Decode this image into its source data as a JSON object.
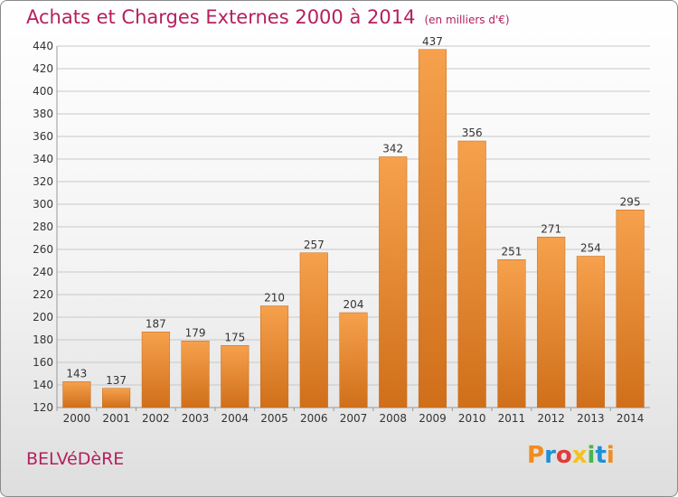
{
  "header": {
    "title": "Achats et Charges Externes 2000 à 2014",
    "unit": "(en milliers d'€)"
  },
  "footer": {
    "commune": "BELVéDèRE",
    "logo": {
      "letters": [
        "P",
        "r",
        "o",
        "x",
        "i",
        "t",
        "i"
      ],
      "colors": [
        "#f28c1e",
        "#1f8fd6",
        "#e23b3b",
        "#f2c21e",
        "#49b649",
        "#1f8fd6",
        "#f28c1e"
      ]
    }
  },
  "colors": {
    "bar_top": "#f6a14d",
    "bar_bottom": "#d06f1a",
    "grid": "#c8c8c8",
    "title": "#b5205e"
  },
  "chart_data": {
    "type": "bar",
    "categories": [
      "2000",
      "2001",
      "2002",
      "2003",
      "2004",
      "2005",
      "2006",
      "2007",
      "2008",
      "2009",
      "2010",
      "2011",
      "2012",
      "2013",
      "2014"
    ],
    "values": [
      143,
      137,
      187,
      179,
      175,
      210,
      257,
      204,
      342,
      437,
      356,
      251,
      271,
      254,
      295
    ],
    "ylim": [
      120,
      440
    ],
    "yticks": [
      120,
      140,
      160,
      180,
      200,
      220,
      240,
      260,
      280,
      300,
      320,
      340,
      360,
      380,
      400,
      420,
      440
    ],
    "grid": true
  }
}
